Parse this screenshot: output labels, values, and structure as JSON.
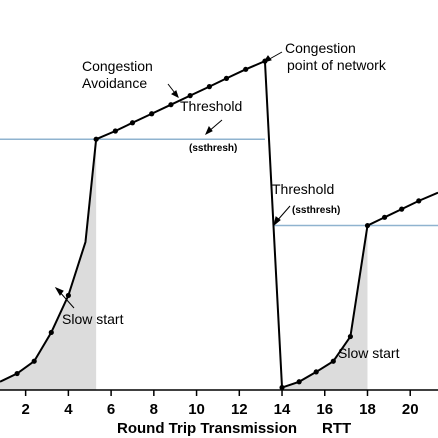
{
  "chart_data": {
    "type": "line",
    "xlabel": "Round Trip Transmission",
    "xlabel_unit": "RTT",
    "xlim": [
      0.8,
      21.3
    ],
    "ylim": [
      0,
      45
    ],
    "x_ticks": [
      2,
      4,
      6,
      8,
      10,
      12,
      14,
      16,
      18,
      20
    ],
    "threshold_levels": [
      {
        "y": 30.5,
        "x_range": [
          0.8,
          13.2
        ]
      },
      {
        "y": 20.0,
        "x_range": [
          13.6,
          21.3
        ]
      }
    ],
    "series": [
      {
        "values_xy": [
          [
            0.8,
            1.0
          ],
          [
            1.6,
            2.0
          ],
          [
            2.4,
            3.5
          ],
          [
            3.2,
            7.0
          ],
          [
            4.0,
            11.5
          ],
          [
            4.8,
            18.0
          ],
          [
            5.3,
            30.5
          ],
          [
            6.2,
            31.5
          ],
          [
            7.0,
            32.5
          ],
          [
            7.9,
            33.6
          ],
          [
            8.8,
            34.7
          ],
          [
            9.7,
            35.8
          ],
          [
            10.6,
            36.9
          ],
          [
            11.4,
            37.9
          ],
          [
            12.3,
            39.0
          ],
          [
            13.2,
            40.0
          ],
          [
            13.6,
            20.0
          ],
          [
            14.0,
            0.3
          ],
          [
            14.8,
            1.0
          ],
          [
            15.6,
            2.2
          ],
          [
            16.4,
            3.5
          ],
          [
            17.2,
            6.5
          ],
          [
            18.0,
            20.0
          ],
          [
            18.8,
            21.0
          ],
          [
            19.6,
            22.0
          ],
          [
            20.4,
            23.0
          ],
          [
            21.3,
            24.0
          ]
        ],
        "marker_x": [
          1.6,
          2.4,
          3.2,
          4.0,
          5.3,
          6.2,
          7.0,
          7.9,
          8.8,
          9.7,
          10.6,
          11.4,
          12.3,
          13.2,
          14.0,
          14.8,
          15.6,
          16.4,
          17.2,
          18.0,
          18.8,
          19.6,
          20.4
        ]
      }
    ],
    "shaded_regions": [
      {
        "name": "slow-start-1",
        "x_range": [
          0.8,
          5.3
        ]
      },
      {
        "name": "slow-start-2",
        "x_range": [
          14.0,
          18.0
        ]
      }
    ],
    "annotations": {
      "congestion_avoidance_line1": "Congestion",
      "congestion_avoidance_line2": "Avoidance",
      "congestion_point_line1": "Congestion",
      "congestion_point_line2": "point of network",
      "threshold1": "Threshold",
      "ssthresh1": "(ssthresh)",
      "threshold2": "Threshold",
      "ssthresh2": "(ssthresh)",
      "slow_start1": "Slow start",
      "slow_start2": "Slow start"
    },
    "colors": {
      "line": "#000000",
      "threshold": "#8fb3cf",
      "shade": "#dcdcdc"
    }
  }
}
